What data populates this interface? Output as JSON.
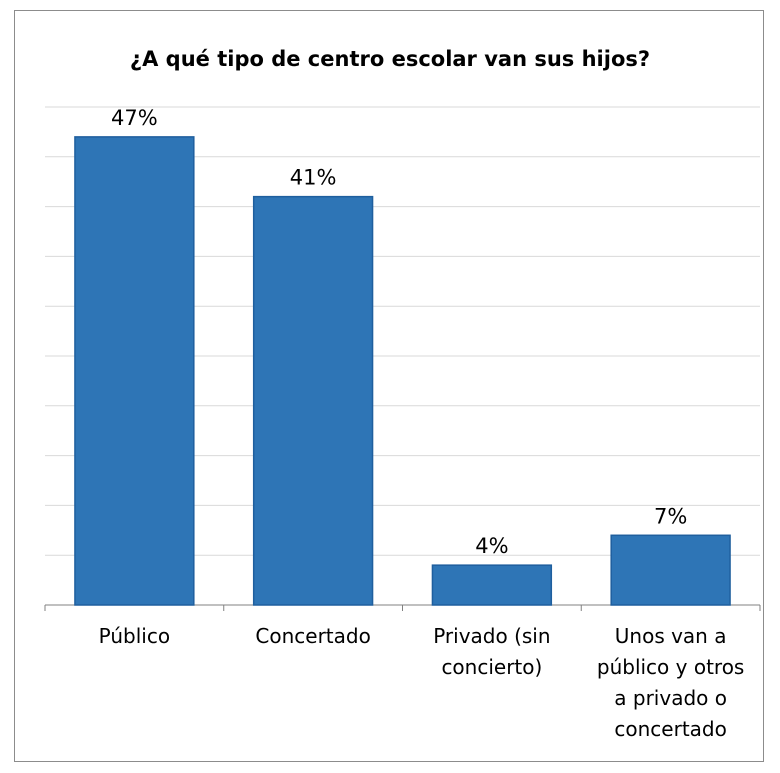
{
  "chart_data": {
    "type": "bar",
    "title": "¿A qué tipo de centro escolar van sus hijos?",
    "categories": [
      [
        "Público"
      ],
      [
        "Concertado"
      ],
      [
        "Privado (sin",
        "concierto)"
      ],
      [
        "Unos van a",
        "público y otros",
        "a privado o",
        "concertado"
      ]
    ],
    "values": [
      47,
      41,
      4,
      7
    ],
    "value_labels": [
      "47%",
      "41%",
      "4%",
      "7%"
    ],
    "ylim": [
      0,
      50
    ],
    "grid": true,
    "colors": {
      "bar": "#2e75b6",
      "bar_edge": "#1f5f9e",
      "grid": "#d9d9d9",
      "axis": "#808080"
    }
  }
}
